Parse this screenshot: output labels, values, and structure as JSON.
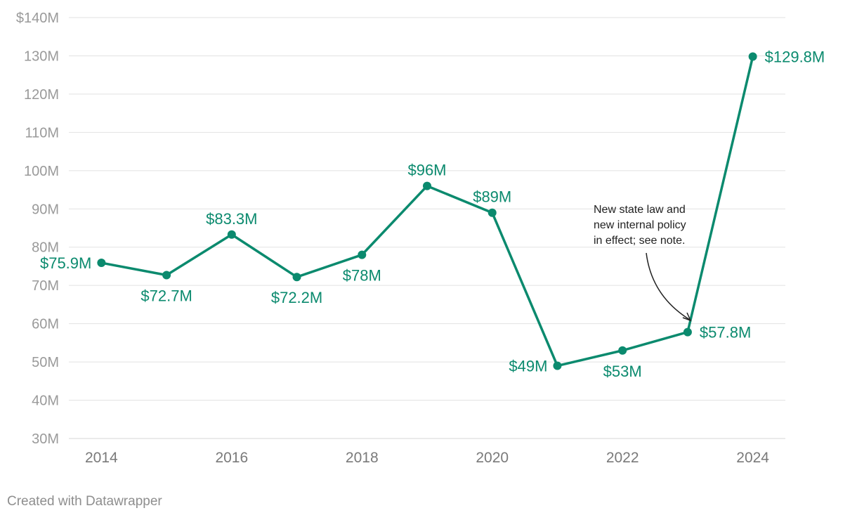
{
  "chart_data": {
    "type": "line",
    "title": "",
    "xlabel": "",
    "ylabel": "",
    "x": [
      2014,
      2015,
      2016,
      2017,
      2018,
      2019,
      2020,
      2021,
      2022,
      2023,
      2024
    ],
    "series": [
      {
        "name": "Value",
        "values": [
          75.9,
          72.7,
          83.3,
          72.2,
          78,
          96,
          89,
          49,
          53,
          57.8,
          129.8
        ],
        "labels": [
          "$75.9M",
          "$72.7M",
          "$83.3M",
          "$72.2M",
          "$78M",
          "$96M",
          "$89M",
          "$49M",
          "$53M",
          "$57.8M",
          "$129.8M"
        ],
        "label_positions": [
          "left",
          "below",
          "above",
          "below",
          "below",
          "above",
          "above",
          "left",
          "below",
          "right",
          "right"
        ]
      }
    ],
    "ylim": [
      30,
      140
    ],
    "xlim": [
      2013.5,
      2024.5
    ],
    "yticks": [
      30,
      40,
      50,
      60,
      70,
      80,
      90,
      100,
      110,
      120,
      130,
      140
    ],
    "ytick_labels": [
      "30M",
      "40M",
      "50M",
      "60M",
      "70M",
      "80M",
      "90M",
      "100M",
      "110M",
      "120M",
      "130M",
      "$140M"
    ],
    "xticks": [
      2014,
      2016,
      2018,
      2020,
      2022,
      2024
    ],
    "xtick_labels": [
      "2014",
      "2016",
      "2018",
      "2020",
      "2022",
      "2024"
    ],
    "grid": true,
    "line_color": "#0b8a6e",
    "annotation": {
      "lines": [
        "New state law and",
        "new internal policy",
        "in effect; see note."
      ],
      "target_year": 2023
    }
  },
  "footer": {
    "credit": "Created with Datawrapper"
  }
}
